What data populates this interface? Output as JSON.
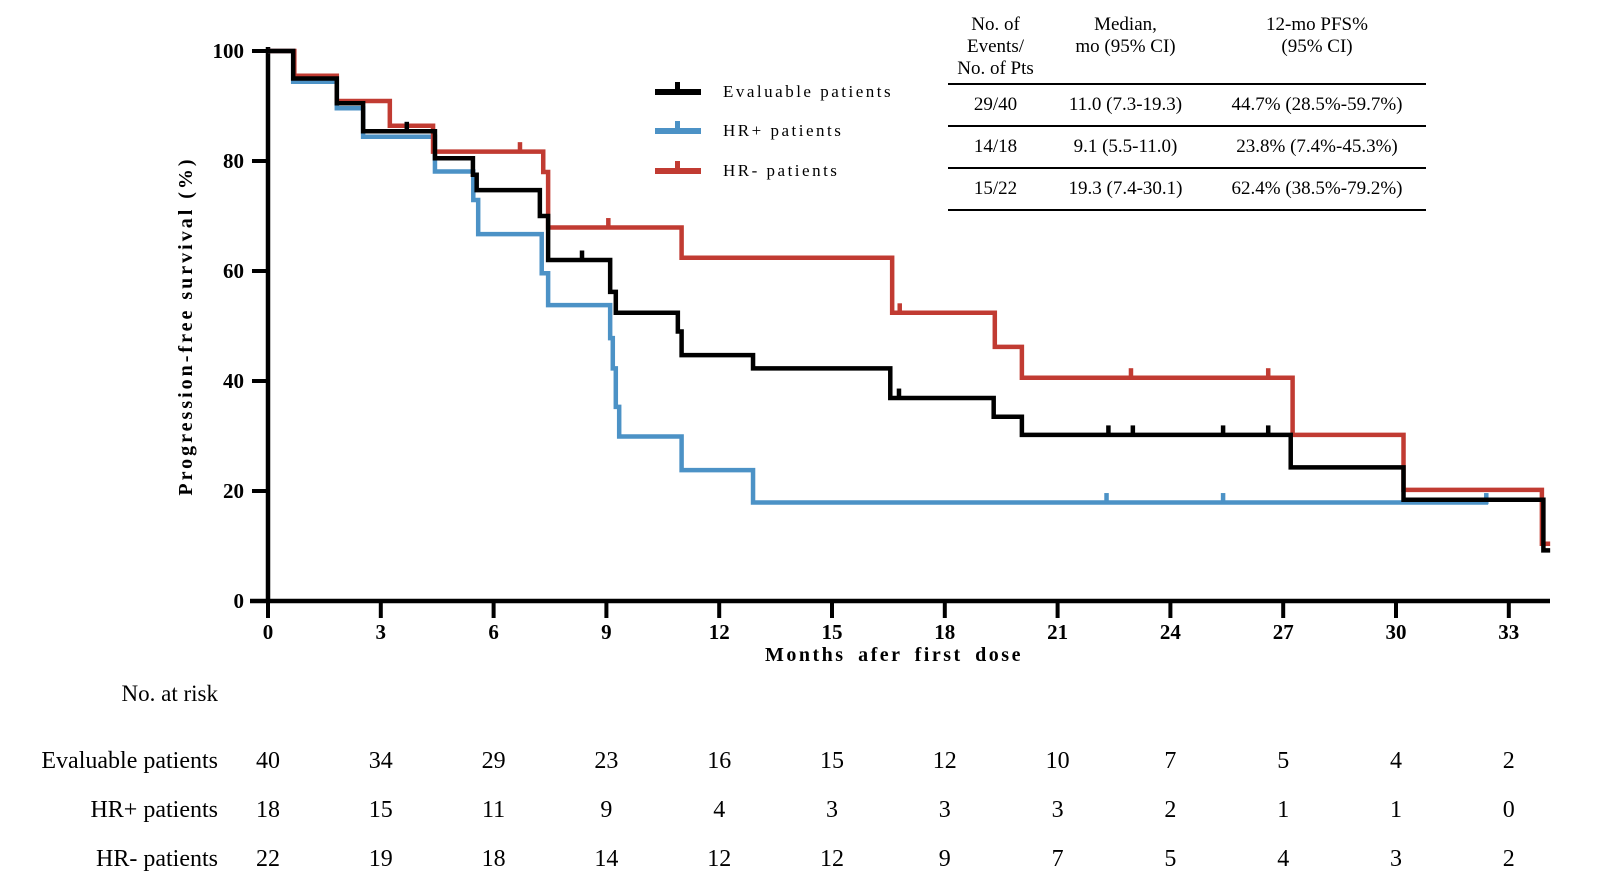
{
  "figure": {
    "y_axis": {
      "label": "Progression-free survival (%)",
      "ticks": [
        0,
        20,
        40,
        60,
        80,
        100
      ],
      "range": [
        0,
        100
      ]
    },
    "x_axis": {
      "label": "Months afer first dose",
      "ticks": [
        0,
        3,
        6,
        9,
        12,
        15,
        18,
        21,
        24,
        27,
        30,
        33
      ],
      "range": [
        0,
        34.2
      ]
    }
  },
  "chart_data": {
    "type": "line",
    "subtype": "kaplan-meier-step",
    "title": "",
    "xlabel": "Months afer first dose",
    "ylabel": "Progression-free survival (%)",
    "xlim": [
      0,
      34.2
    ],
    "ylim": [
      0,
      100
    ],
    "grid": false,
    "legend_position": "upper-center-left",
    "series": [
      {
        "name": "HR+ patients",
        "color": "#4C92C6",
        "end": 32.45,
        "steps": [
          [
            0,
            100
          ],
          [
            0.67,
            94.4
          ],
          [
            1.83,
            89.6
          ],
          [
            2.53,
            84.4
          ],
          [
            4.44,
            78.1
          ],
          [
            5.46,
            72.9
          ],
          [
            5.59,
            66.7
          ],
          [
            7.28,
            59.6
          ],
          [
            7.45,
            53.8
          ],
          [
            9.1,
            47.8
          ],
          [
            9.17,
            42.3
          ],
          [
            9.25,
            35.3
          ],
          [
            9.34,
            29.9
          ],
          [
            11.0,
            23.8
          ],
          [
            12.9,
            17.9
          ]
        ],
        "censors": [
          [
            22.3,
            17.9
          ],
          [
            25.4,
            17.9
          ],
          [
            32.4,
            17.9
          ]
        ]
      },
      {
        "name": "HR- patients",
        "color": "#C13B32",
        "end": 34.1,
        "steps": [
          [
            0,
            100
          ],
          [
            0.7,
            95.5
          ],
          [
            1.83,
            90.9
          ],
          [
            3.24,
            86.4
          ],
          [
            4.39,
            81.7
          ],
          [
            7.32,
            78.0
          ],
          [
            7.45,
            67.9
          ],
          [
            11.0,
            62.4
          ],
          [
            16.6,
            52.4
          ],
          [
            19.33,
            46.2
          ],
          [
            20.05,
            40.6
          ],
          [
            27.25,
            30.2
          ],
          [
            30.2,
            20.2
          ],
          [
            33.88,
            10.4
          ]
        ],
        "censors": [
          [
            6.7,
            81.7
          ],
          [
            9.05,
            67.9
          ],
          [
            16.8,
            52.4
          ],
          [
            22.95,
            40.6
          ],
          [
            26.6,
            40.6
          ]
        ]
      },
      {
        "name": "Evaluable patients",
        "color": "#000000",
        "end": 34.1,
        "steps": [
          [
            0,
            100
          ],
          [
            0.67,
            95.0
          ],
          [
            1.83,
            90.5
          ],
          [
            2.53,
            85.4
          ],
          [
            4.44,
            80.5
          ],
          [
            5.45,
            77.5
          ],
          [
            5.55,
            74.7
          ],
          [
            7.23,
            70.0
          ],
          [
            7.45,
            62.0
          ],
          [
            9.1,
            56.2
          ],
          [
            9.25,
            52.4
          ],
          [
            10.9,
            49.0
          ],
          [
            11.0,
            44.7
          ],
          [
            12.9,
            42.3
          ],
          [
            16.55,
            36.9
          ],
          [
            19.3,
            33.5
          ],
          [
            20.05,
            30.2
          ],
          [
            27.2,
            24.3
          ],
          [
            30.2,
            18.4
          ],
          [
            33.92,
            9.2
          ]
        ],
        "censors": [
          [
            3.69,
            85.4
          ],
          [
            8.35,
            62.0
          ],
          [
            16.78,
            36.9
          ],
          [
            22.35,
            30.2
          ],
          [
            23.0,
            30.2
          ],
          [
            25.4,
            30.2
          ],
          [
            26.6,
            30.2
          ]
        ]
      }
    ]
  },
  "legend": {
    "items": [
      {
        "label": "Evaluable patients",
        "color": "#000000"
      },
      {
        "label": "HR+ patients",
        "color": "#4C92C6"
      },
      {
        "label": "HR- patients",
        "color": "#C13B32"
      }
    ]
  },
  "stats_table": {
    "headers": [
      "No. of Events/\nNo. of Pts",
      "Median,\nmo (95% CI)",
      "12-mo PFS%\n(95% CI)"
    ],
    "rows": [
      [
        "29/40",
        "11.0 (7.3-19.3)",
        "44.7% (28.5%-59.7%)"
      ],
      [
        "14/18",
        "9.1 (5.5-11.0)",
        "23.8% (7.4%-45.3%)"
      ],
      [
        "15/22",
        "19.3 (7.4-30.1)",
        "62.4% (38.5%-79.2%)"
      ]
    ]
  },
  "risk_table": {
    "title": "No. at risk",
    "months": [
      0,
      3,
      6,
      9,
      12,
      15,
      18,
      21,
      24,
      27,
      30,
      33
    ],
    "rows": [
      {
        "label": "Evaluable patients",
        "values": [
          40,
          34,
          29,
          23,
          16,
          15,
          12,
          10,
          7,
          5,
          4,
          2
        ]
      },
      {
        "label": "HR+ patients",
        "values": [
          18,
          15,
          11,
          9,
          4,
          3,
          3,
          3,
          2,
          1,
          1,
          0
        ]
      },
      {
        "label": "HR- patients",
        "values": [
          22,
          19,
          18,
          14,
          12,
          12,
          9,
          7,
          5,
          4,
          3,
          2
        ]
      }
    ]
  }
}
